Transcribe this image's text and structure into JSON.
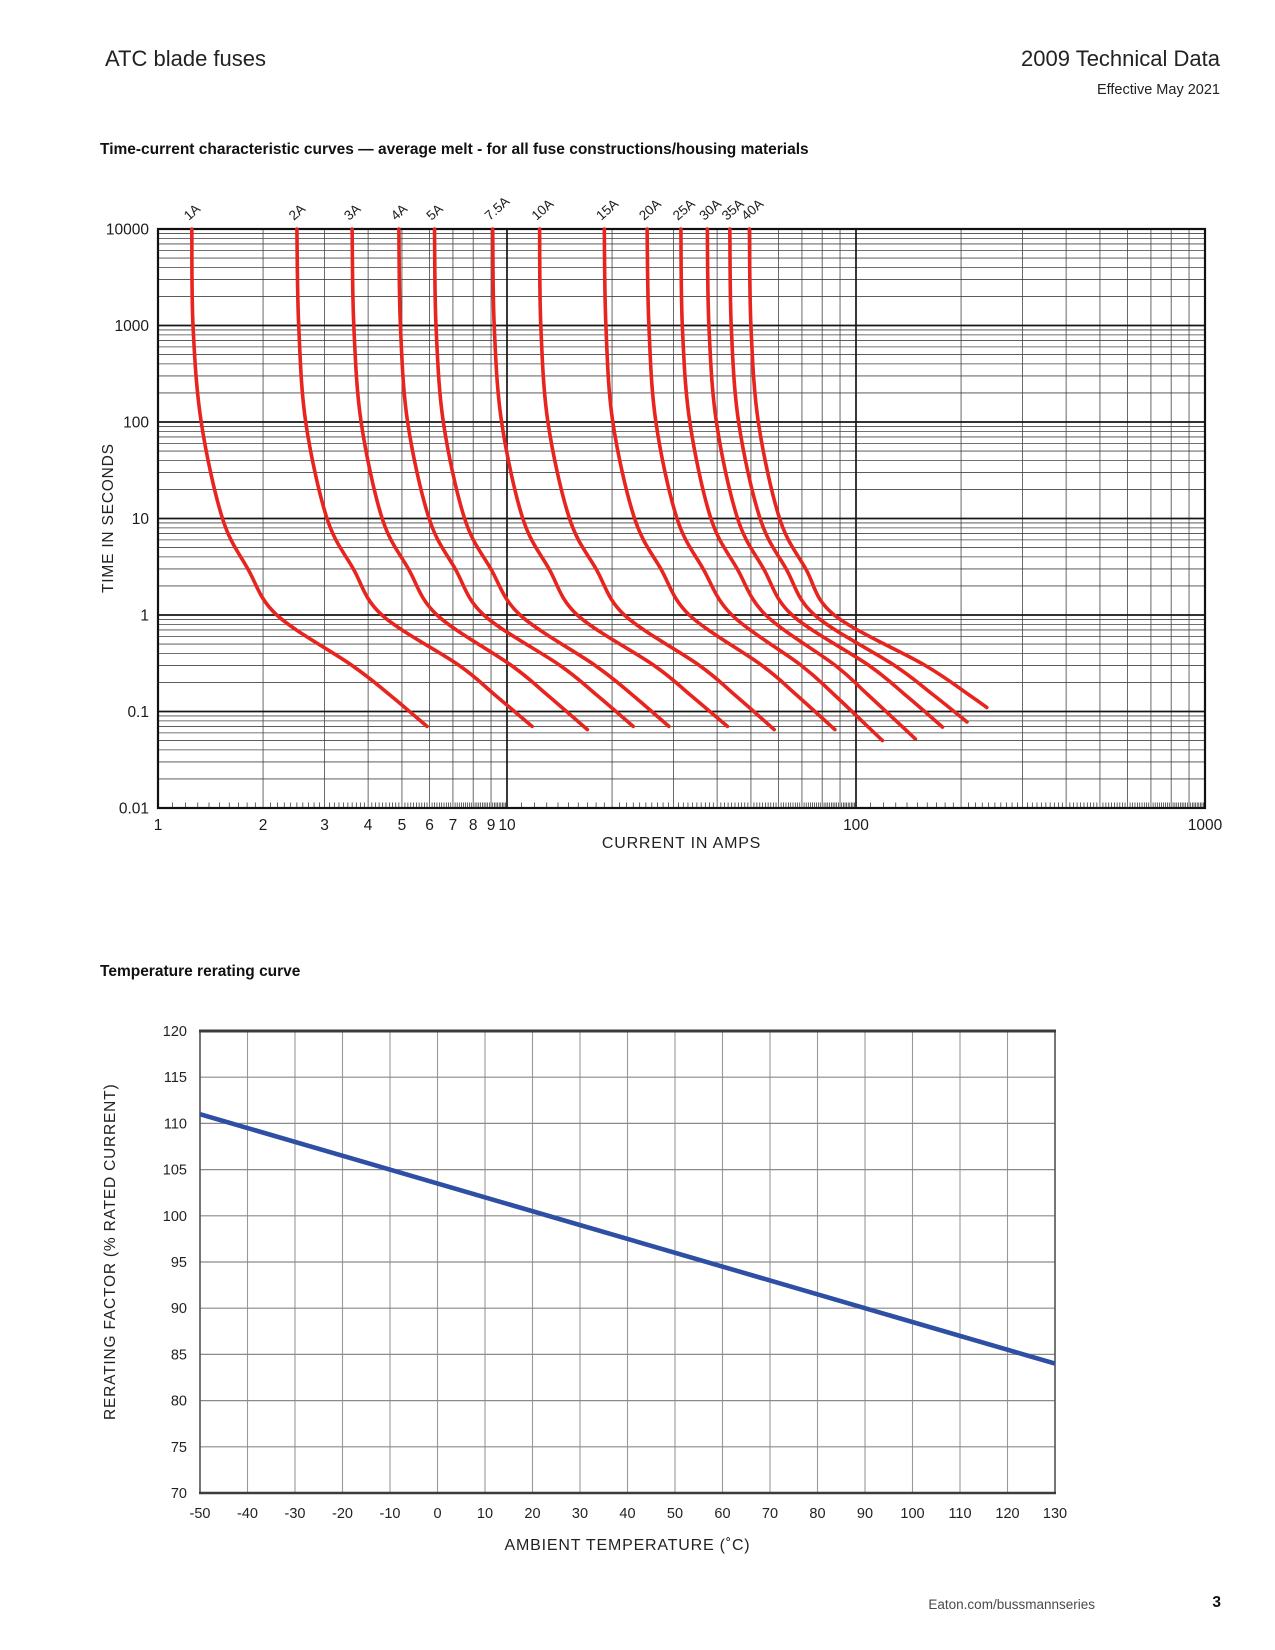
{
  "header": {
    "product_title": "ATC blade fuses",
    "doc_info": "2009 Technical Data",
    "effective_date": "Effective May 2021"
  },
  "sections": {
    "time_current_title": "Time-current characteristic curves — average melt - for all fuse constructions/housing materials",
    "rerating_title": "Temperature rerating curve"
  },
  "footer": {
    "url": "Eaton.com/bussmannseries",
    "page_number": "3"
  },
  "colors": {
    "curve_red": "#e8241f",
    "line_blue": "#2e4fa3",
    "grid_dark": "#444444",
    "grid_major": "#161616",
    "grid_light": "#999999"
  },
  "chart_data": [
    {
      "id": "time-current-characteristics",
      "type": "line",
      "scale": "log-log",
      "title": "Time-current characteristic curves — average melt - for all fuse constructions/housing materials",
      "xlabel": "CURRENT IN AMPS",
      "ylabel": "TIME IN SECONDS",
      "xlim": [
        1,
        1000
      ],
      "ylim": [
        0.01,
        10000
      ],
      "grid": "log major+minor",
      "legend_position": "labels-above-curves",
      "x_tick_values": [
        1,
        2,
        3,
        4,
        5,
        6,
        7,
        8,
        9,
        10,
        100,
        1000
      ],
      "x_tick_labels": [
        "1",
        "2",
        "3",
        "4",
        "5",
        "6",
        "7",
        "8",
        "9",
        "10",
        "100",
        "1000"
      ],
      "y_tick_values": [
        10000,
        1000,
        100,
        10,
        1,
        0.1,
        0.01
      ],
      "y_tick_labels": [
        "10000",
        "1000",
        "100",
        "10",
        "1",
        "0.1",
        "0.01"
      ],
      "series": [
        {
          "name": "1A",
          "points": [
            [
              1.25,
              10000
            ],
            [
              1.26,
              1000
            ],
            [
              1.33,
              100
            ],
            [
              1.53,
              10
            ],
            [
              1.81,
              3
            ],
            [
              2.19,
              1
            ],
            [
              3.6,
              0.3
            ],
            [
              4.6,
              0.15
            ],
            [
              5.9,
              0.07
            ]
          ]
        },
        {
          "name": "2A",
          "points": [
            [
              2.5,
              10000
            ],
            [
              2.53,
              1000
            ],
            [
              2.65,
              100
            ],
            [
              3.05,
              10
            ],
            [
              3.63,
              3
            ],
            [
              4.38,
              1
            ],
            [
              7.3,
              0.3
            ],
            [
              9.2,
              0.15
            ],
            [
              11.8,
              0.07
            ]
          ]
        },
        {
          "name": "3A",
          "points": [
            [
              3.6,
              10000
            ],
            [
              3.64,
              1000
            ],
            [
              3.82,
              100
            ],
            [
              4.39,
              10
            ],
            [
              5.22,
              3
            ],
            [
              6.3,
              1
            ],
            [
              10.3,
              0.3
            ],
            [
              13.0,
              0.15
            ],
            [
              17.0,
              0.065
            ]
          ]
        },
        {
          "name": "4A",
          "points": [
            [
              4.9,
              10000
            ],
            [
              4.95,
              1000
            ],
            [
              5.19,
              100
            ],
            [
              5.98,
              10
            ],
            [
              7.11,
              3
            ],
            [
              8.58,
              1
            ],
            [
              14.2,
              0.3
            ],
            [
              18.0,
              0.15
            ],
            [
              23.0,
              0.07
            ]
          ]
        },
        {
          "name": "5A",
          "points": [
            [
              6.2,
              10000
            ],
            [
              6.26,
              1000
            ],
            [
              6.57,
              100
            ],
            [
              7.56,
              10
            ],
            [
              8.99,
              3
            ],
            [
              10.9,
              1
            ],
            [
              17.9,
              0.3
            ],
            [
              22.8,
              0.15
            ],
            [
              29.1,
              0.07
            ]
          ]
        },
        {
          "name": "7.5A",
          "points": [
            [
              9.1,
              10000
            ],
            [
              9.19,
              1000
            ],
            [
              9.65,
              100
            ],
            [
              11.1,
              10
            ],
            [
              13.2,
              3
            ],
            [
              15.9,
              1
            ],
            [
              26.4,
              0.3
            ],
            [
              33.4,
              0.15
            ],
            [
              42.8,
              0.07
            ]
          ]
        },
        {
          "name": "10A",
          "points": [
            [
              12.4,
              10000
            ],
            [
              12.5,
              1000
            ],
            [
              13.1,
              100
            ],
            [
              15.1,
              10
            ],
            [
              18.0,
              3
            ],
            [
              21.7,
              1
            ],
            [
              35.6,
              0.3
            ],
            [
              44.8,
              0.15
            ],
            [
              58.3,
              0.065
            ]
          ]
        },
        {
          "name": "15A",
          "points": [
            [
              19.0,
              10000
            ],
            [
              19.2,
              1000
            ],
            [
              20.1,
              100
            ],
            [
              23.2,
              10
            ],
            [
              27.6,
              3
            ],
            [
              33.3,
              1
            ],
            [
              53.8,
              0.3
            ],
            [
              67.3,
              0.15
            ],
            [
              87.0,
              0.065
            ]
          ]
        },
        {
          "name": "20A",
          "points": [
            [
              25.2,
              10000
            ],
            [
              25.5,
              1000
            ],
            [
              26.7,
              100
            ],
            [
              30.7,
              10
            ],
            [
              36.5,
              3
            ],
            [
              44.1,
              1
            ],
            [
              69.7,
              0.3
            ],
            [
              86.5,
              0.15
            ],
            [
              119.0,
              0.05
            ]
          ]
        },
        {
          "name": "25A",
          "points": [
            [
              31.5,
              10000
            ],
            [
              31.8,
              1000
            ],
            [
              33.4,
              100
            ],
            [
              38.4,
              10
            ],
            [
              45.7,
              3
            ],
            [
              55.1,
              1
            ],
            [
              87.3,
              0.3
            ],
            [
              108.0,
              0.15
            ],
            [
              148.0,
              0.052
            ]
          ]
        },
        {
          "name": "30A",
          "points": [
            [
              37.5,
              10000
            ],
            [
              37.9,
              1000
            ],
            [
              39.8,
              100
            ],
            [
              45.8,
              10
            ],
            [
              54.4,
              3
            ],
            [
              65.6,
              1
            ],
            [
              109.0,
              0.3
            ],
            [
              138.0,
              0.15
            ],
            [
              177.0,
              0.069
            ]
          ]
        },
        {
          "name": "35A",
          "points": [
            [
              43.5,
              10000
            ],
            [
              43.9,
              1000
            ],
            [
              46.1,
              100
            ],
            [
              53.1,
              10
            ],
            [
              63.1,
              3
            ],
            [
              76.1,
              1
            ],
            [
              129.0,
              0.3
            ],
            [
              166.0,
              0.15
            ],
            [
              208.0,
              0.078
            ]
          ]
        },
        {
          "name": "40A",
          "points": [
            [
              49.5,
              10000
            ],
            [
              50.0,
              1000
            ],
            [
              52.5,
              100
            ],
            [
              60.4,
              10
            ],
            [
              71.8,
              3
            ],
            [
              86.6,
              1
            ],
            [
              158.0,
              0.3
            ],
            [
              210.0,
              0.15
            ],
            [
              237.0,
              0.11
            ]
          ]
        }
      ]
    },
    {
      "id": "temperature-rerating",
      "type": "line",
      "scale": "linear",
      "title": "Temperature rerating curve",
      "xlabel": "AMBIENT TEMPERATURE (˚C)",
      "ylabel": "RERATING FACTOR (% RATED CURRENT)",
      "xlim": [
        -50,
        130
      ],
      "ylim": [
        70,
        120
      ],
      "grid": "on",
      "x_tick_values": [
        -50,
        -40,
        -30,
        -20,
        -10,
        0,
        10,
        20,
        30,
        40,
        50,
        60,
        70,
        80,
        90,
        100,
        110,
        120,
        130
      ],
      "x_tick_labels": [
        "-50",
        "-40",
        "-30",
        "-20",
        "-10",
        "0",
        "10",
        "20",
        "30",
        "40",
        "50",
        "60",
        "70",
        "80",
        "90",
        "100",
        "110",
        "120",
        "130"
      ],
      "y_tick_values": [
        120,
        115,
        110,
        105,
        100,
        95,
        90,
        85,
        80,
        75,
        70
      ],
      "y_tick_labels": [
        "120",
        "115",
        "110",
        "105",
        "100",
        "95",
        "90",
        "85",
        "80",
        "75",
        "70"
      ],
      "series": [
        {
          "name": "rerating-factor",
          "points": [
            [
              -50,
              111
            ],
            [
              130,
              84
            ]
          ]
        }
      ]
    }
  ]
}
